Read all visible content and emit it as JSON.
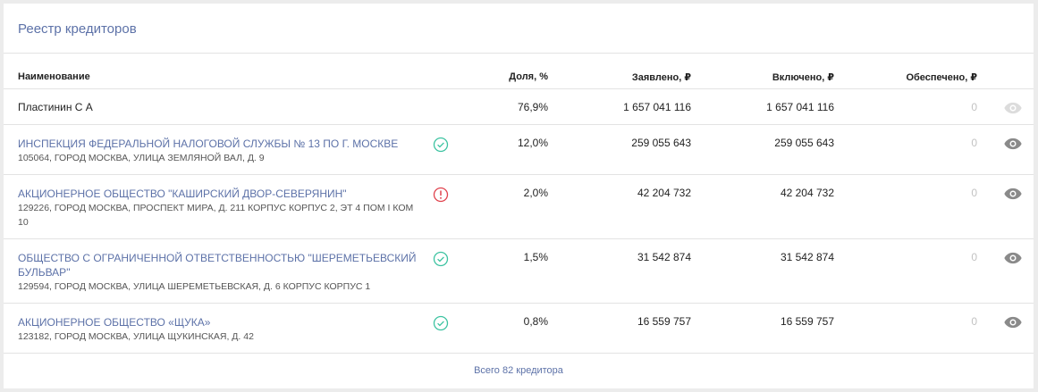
{
  "title": "Реестр кредиторов",
  "columns": {
    "name": "Наименование",
    "share": "Доля, %",
    "declared": "Заявлено, ₽",
    "included": "Включено, ₽",
    "secured": "Обеспечено, ₽"
  },
  "rows": [
    {
      "name": "Пластинин С А",
      "address": "",
      "status": "none",
      "share": "76,9%",
      "declared": "1 657 041 116",
      "included": "1 657 041 116",
      "secured": "0",
      "eye": "eye-icon-faded"
    },
    {
      "name": "ИНСПЕКЦИЯ ФЕДЕРАЛЬНОЙ НАЛОГОВОЙ СЛУЖБЫ № 13 ПО Г. МОСКВЕ",
      "address": "105064, ГОРОД МОСКВА, УЛИЦА ЗЕМЛЯНОЙ ВАЛ, Д. 9",
      "status": "check-circle-icon",
      "share": "12,0%",
      "declared": "259 055 643",
      "included": "259 055 643",
      "secured": "0",
      "eye": "eye-icon"
    },
    {
      "name": "АКЦИОНЕРНОЕ ОБЩЕСТВО \"КАШИРСКИЙ ДВОР-СЕВЕРЯНИН\"",
      "address": "129226, ГОРОД МОСКВА, ПРОСПЕКТ МИРА, Д. 211 КОРПУС КОРПУС 2, ЭТ 4 ПОМ I КОМ 10",
      "status": "alert-circle-icon",
      "share": "2,0%",
      "declared": "42 204 732",
      "included": "42 204 732",
      "secured": "0",
      "eye": "eye-icon"
    },
    {
      "name": "ОБЩЕСТВО С ОГРАНИЧЕННОЙ ОТВЕТСТВЕННОСТЬЮ \"ШЕРЕМЕТЬЕВСКИЙ БУЛЬВАР\"",
      "address": "129594, ГОРОД МОСКВА, УЛИЦА ШЕРЕМЕТЬЕВСКАЯ, Д. 6 КОРПУС КОРПУС 1",
      "status": "check-circle-icon",
      "share": "1,5%",
      "declared": "31 542 874",
      "included": "31 542 874",
      "secured": "0",
      "eye": "eye-icon"
    },
    {
      "name": "АКЦИОНЕРНОЕ ОБЩЕСТВО «ЩУКА»",
      "address": "123182, ГОРОД МОСКВА, УЛИЦА ЩУКИНСКАЯ, Д. 42",
      "status": "check-circle-icon",
      "share": "0,8%",
      "declared": "16 559 757",
      "included": "16 559 757",
      "secured": "0",
      "eye": "eye-icon"
    }
  ],
  "footer": "Всего 82 кредитора",
  "colors": {
    "link": "#5d72a8",
    "check": "#3cc3a1",
    "alert": "#e0424d",
    "eye": "#8a8a8a",
    "eye_faded": "#dcdcdc"
  }
}
